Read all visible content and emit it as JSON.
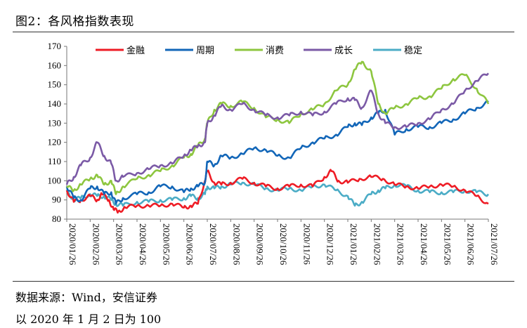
{
  "figure": {
    "title": "图2：各风格指数表现",
    "source": "数据来源：Wind，安信证券",
    "note": "以 2020 年 1 月 2 日为 100"
  },
  "chart_data": {
    "type": "line",
    "title": "各风格指数表现",
    "xlabel": "",
    "ylabel": "",
    "ylim": [
      80,
      170
    ],
    "yticks": [
      80,
      90,
      100,
      110,
      120,
      130,
      140,
      150,
      160,
      170
    ],
    "categories": [
      "2020/01/26",
      "2020/02/26",
      "2020/03/26",
      "2020/04/26",
      "2020/05/26",
      "2020/06/26",
      "2020/07/26",
      "2020/08/26",
      "2020/09/26",
      "2020/10/26",
      "2020/11/26",
      "2020/12/26",
      "2021/01/26",
      "2021/02/26",
      "2021/03/26",
      "2021/04/26",
      "2021/05/26",
      "2021/06/26",
      "2021/07/26"
    ],
    "legend_position": "top",
    "series": [
      {
        "name": "金融",
        "color": "#ee1c25",
        "x": [
          0,
          0.3,
          0.6,
          1,
          1.3,
          1.5,
          1.8,
          2,
          2.2,
          2.5,
          3,
          3.5,
          4,
          4.5,
          5,
          5.3,
          5.6,
          5.9,
          6,
          6.3,
          6.6,
          7,
          7.5,
          8,
          8.5,
          9,
          9.5,
          10,
          10.5,
          11,
          11.3,
          11.6,
          12,
          12.5,
          13,
          13.5,
          14,
          14.5,
          15,
          15.5,
          16,
          16.5,
          17,
          17.5,
          18
        ],
        "values": [
          95,
          89,
          90,
          92,
          90,
          93,
          90,
          85,
          84,
          86,
          87,
          87,
          87,
          88,
          86,
          87,
          88,
          100,
          105,
          99,
          98,
          99,
          101,
          99,
          97,
          96,
          97,
          98,
          97,
          102,
          105,
          100,
          99,
          101,
          102,
          101,
          98,
          97,
          96,
          97,
          98,
          97,
          95,
          92,
          88
        ]
      },
      {
        "name": "周期",
        "color": "#1266b8",
        "x": [
          0,
          0.3,
          0.6,
          1,
          1.3,
          1.6,
          1.9,
          2.1,
          2.4,
          3,
          3.5,
          4,
          4.5,
          5,
          5.3,
          5.6,
          5.9,
          6,
          6.3,
          6.6,
          7,
          7.5,
          8,
          8.5,
          9,
          9.5,
          10,
          10.5,
          11,
          11.5,
          12,
          12.3,
          12.6,
          13,
          13.3,
          13.6,
          14,
          14.5,
          15,
          15.5,
          16,
          16.5,
          17,
          17.5,
          18
        ],
        "values": [
          97,
          91,
          90,
          96,
          97,
          93,
          94,
          88,
          91,
          93,
          94,
          97,
          97,
          94,
          96,
          97,
          99,
          110,
          108,
          113,
          112,
          114,
          117,
          116,
          113,
          112,
          117,
          120,
          122,
          124,
          128,
          130,
          129,
          133,
          135,
          137,
          124,
          127,
          128,
          128,
          130,
          132,
          135,
          138,
          141
        ]
      },
      {
        "name": "消费",
        "color": "#8dc63f",
        "x": [
          0,
          0.3,
          0.6,
          1,
          1.3,
          1.6,
          1.9,
          2.1,
          2.4,
          3,
          3.5,
          4,
          4.5,
          5,
          5.3,
          5.6,
          5.9,
          6,
          6.3,
          6.6,
          7,
          7.5,
          8,
          8.5,
          9,
          9.5,
          10,
          10.5,
          11,
          11.5,
          12,
          12.3,
          12.6,
          13,
          13.3,
          13.6,
          14,
          14.5,
          15,
          15.5,
          16,
          16.5,
          17,
          17.5,
          18
        ],
        "values": [
          97,
          95,
          98,
          101,
          103,
          98,
          100,
          93,
          97,
          101,
          103,
          105,
          108,
          112,
          114,
          118,
          122,
          130,
          137,
          140,
          139,
          141,
          138,
          133,
          132,
          130,
          135,
          137,
          140,
          147,
          150,
          158,
          162,
          157,
          140,
          135,
          138,
          140,
          143,
          144,
          148,
          153,
          155,
          148,
          140
        ]
      },
      {
        "name": "成长",
        "color": "#7b5aa6",
        "x": [
          0,
          0.3,
          0.6,
          1,
          1.3,
          1.6,
          1.9,
          2.1,
          2.4,
          3,
          3.5,
          4,
          4.5,
          5,
          5.3,
          5.6,
          5.9,
          6,
          6.3,
          6.6,
          7,
          7.5,
          8,
          8.5,
          9,
          9.5,
          10,
          10.5,
          11,
          11.5,
          12,
          12.3,
          12.6,
          13,
          13.3,
          13.6,
          14,
          14.5,
          15,
          15.5,
          16,
          16.5,
          17,
          17.5,
          18
        ],
        "values": [
          98,
          102,
          108,
          112,
          120,
          113,
          109,
          100,
          102,
          104,
          106,
          108,
          109,
          113,
          116,
          118,
          120,
          130,
          134,
          139,
          137,
          140,
          137,
          134,
          133,
          134,
          136,
          134,
          136,
          140,
          143,
          142,
          138,
          147,
          135,
          130,
          128,
          128,
          130,
          132,
          137,
          140,
          147,
          152,
          156
        ]
      },
      {
        "name": "稳定",
        "color": "#4bacc6",
        "x": [
          0,
          0.3,
          0.6,
          1,
          1.3,
          1.6,
          1.9,
          2.1,
          2.4,
          3,
          3.5,
          4,
          4.5,
          5,
          5.3,
          5.6,
          5.9,
          6,
          6.3,
          6.6,
          7,
          7.5,
          8,
          8.5,
          9,
          9.5,
          10,
          10.5,
          11,
          11.5,
          12,
          12.3,
          12.6,
          13,
          13.3,
          13.6,
          14,
          14.5,
          15,
          15.5,
          16,
          16.5,
          17,
          17.5,
          18
        ],
        "values": [
          95,
          90,
          91,
          93,
          92,
          92,
          90,
          88,
          87,
          89,
          89,
          90,
          90,
          91,
          92,
          91,
          93,
          97,
          96,
          97,
          98,
          99,
          98,
          96,
          95,
          96,
          95,
          97,
          98,
          95,
          92,
          87,
          89,
          93,
          95,
          96,
          98,
          97,
          95,
          94,
          94,
          94,
          95,
          94,
          93
        ]
      }
    ]
  }
}
